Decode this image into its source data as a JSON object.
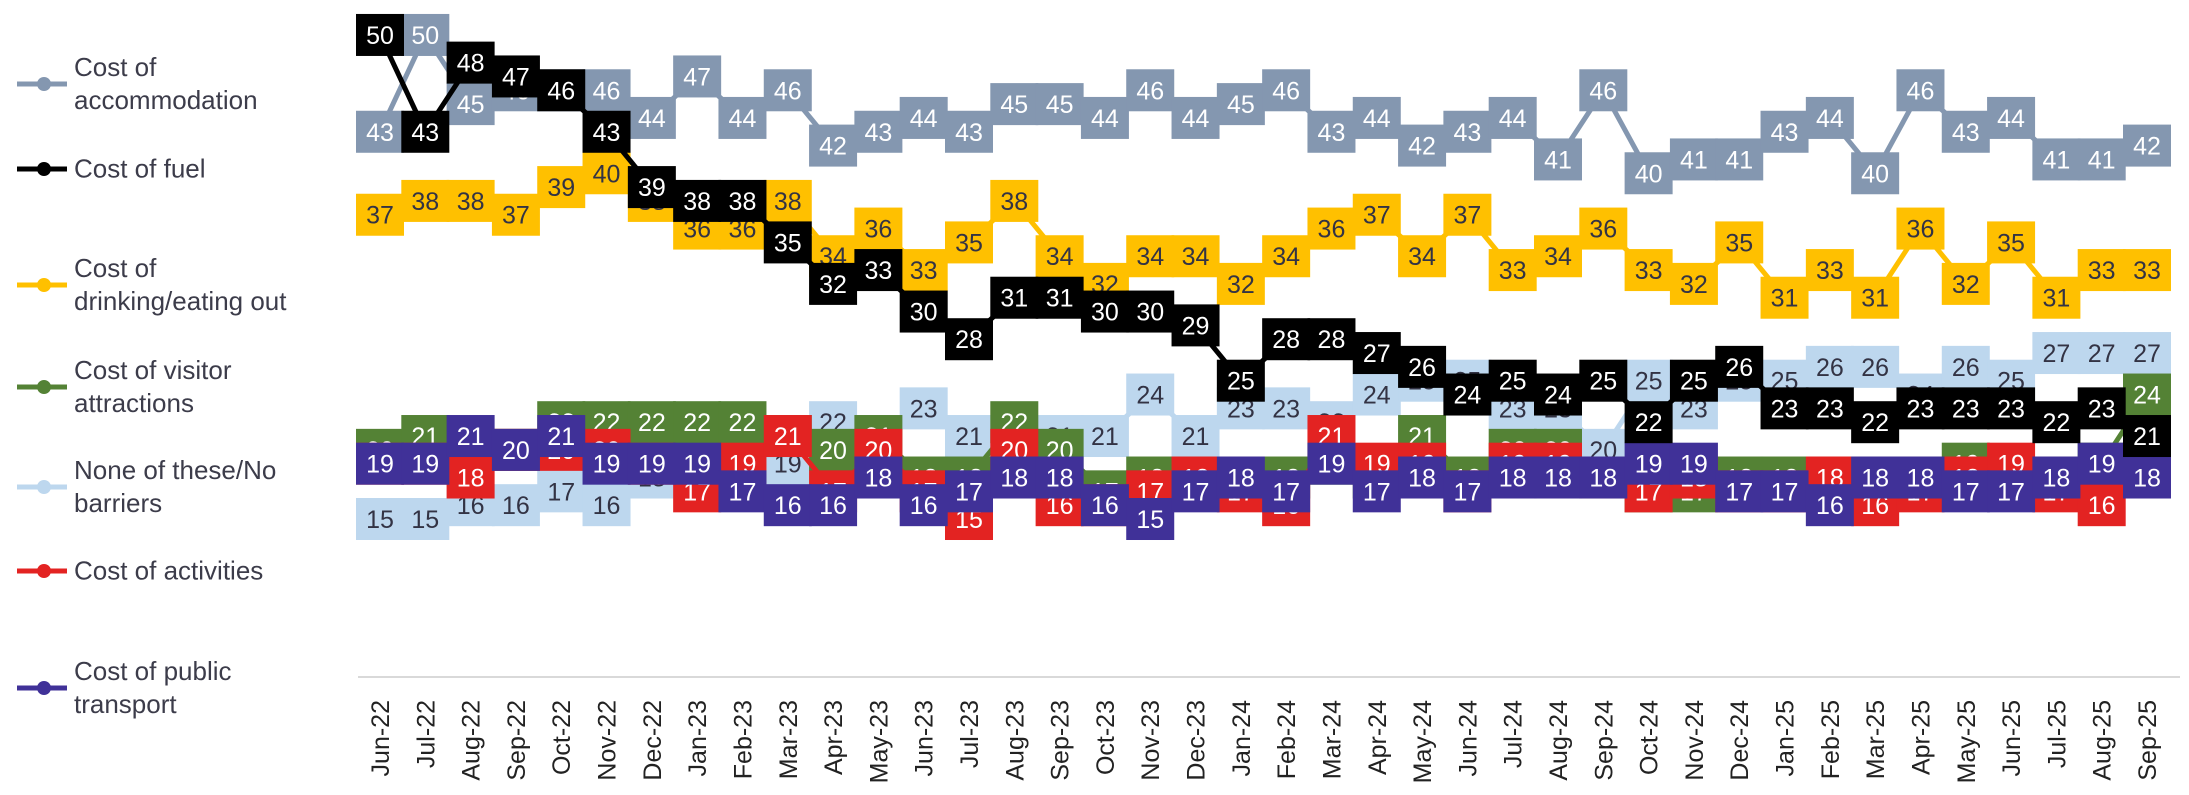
{
  "chart_data": {
    "type": "line",
    "categories": [
      "Jun-22",
      "Jul-22",
      "Aug-22",
      "Sep-22",
      "Oct-22",
      "Nov-22",
      "Dec-22",
      "Jan-23",
      "Feb-23",
      "Mar-23",
      "Apr-23",
      "May-23",
      "Jun-23",
      "Jul-23",
      "Aug-23",
      "Sep-23",
      "Oct-23",
      "Nov-23",
      "Dec-23",
      "Jan-24",
      "Feb-24",
      "Mar-24",
      "Apr-24",
      "May-24",
      "Jun-24",
      "Jul-24",
      "Aug-24",
      "Sep-24",
      "Oct-24",
      "Nov-24",
      "Dec-24",
      "Jan-25",
      "Feb-25",
      "Mar-25",
      "Apr-25",
      "May-25",
      "Jun-25",
      "Jul-25",
      "Aug-25",
      "Sep-25"
    ],
    "ylim": [
      5,
      52
    ],
    "series": [
      {
        "name": "Cost of accommodation",
        "color": "#8497b0",
        "values": [
          43,
          50,
          45,
          46,
          46,
          46,
          44,
          47,
          44,
          46,
          42,
          43,
          44,
          43,
          45,
          45,
          44,
          46,
          44,
          45,
          46,
          43,
          44,
          42,
          43,
          44,
          41,
          46,
          40,
          41,
          41,
          43,
          44,
          40,
          46,
          43,
          44,
          41,
          41,
          42
        ]
      },
      {
        "name": "Cost of fuel",
        "color": "#000000",
        "values": [
          50,
          43,
          48,
          47,
          46,
          43,
          39,
          38,
          38,
          35,
          32,
          33,
          30,
          28,
          31,
          31,
          30,
          30,
          29,
          25,
          28,
          28,
          27,
          26,
          24,
          25,
          24,
          25,
          22,
          25,
          26,
          23,
          23,
          22,
          23,
          23,
          23,
          22,
          23,
          21
        ]
      },
      {
        "name": "Cost of drinking/eating out",
        "color": "#ffc000",
        "values": [
          37,
          38,
          38,
          37,
          39,
          40,
          38,
          36,
          36,
          38,
          34,
          36,
          33,
          35,
          38,
          34,
          32,
          34,
          34,
          32,
          34,
          36,
          37,
          34,
          37,
          33,
          34,
          36,
          33,
          32,
          35,
          31,
          33,
          31,
          36,
          32,
          35,
          31,
          33,
          33
        ]
      },
      {
        "name": "Cost of visitor attractions",
        "color": "#548235",
        "values": [
          20,
          21,
          20,
          20,
          22,
          22,
          22,
          22,
          22,
          21,
          20,
          21,
          18,
          18,
          22,
          20,
          17,
          18,
          18,
          18,
          18,
          19,
          18,
          21,
          18,
          20,
          20,
          18,
          17,
          17,
          18,
          18,
          18,
          18,
          18,
          19,
          18,
          18,
          19,
          24
        ]
      },
      {
        "name": "None of these/No barriers",
        "color": "#bdd7ee",
        "values": [
          15,
          15,
          16,
          16,
          17,
          16,
          18,
          20,
          21,
          19,
          22,
          21,
          23,
          21,
          19,
          21,
          21,
          24,
          21,
          23,
          23,
          22,
          24,
          25,
          25,
          23,
          23,
          20,
          25,
          23,
          25,
          25,
          26,
          26,
          24,
          26,
          25,
          27,
          27,
          27
        ]
      },
      {
        "name": "Cost of activities",
        "color": "#e32322",
        "values": [
          19,
          19,
          18,
          20,
          20,
          20,
          19,
          17,
          19,
          21,
          17,
          20,
          17,
          15,
          20,
          16,
          16,
          17,
          18,
          17,
          16,
          21,
          19,
          19,
          17,
          19,
          19,
          18,
          17,
          18,
          17,
          17,
          18,
          16,
          17,
          18,
          19,
          17,
          16,
          19
        ]
      },
      {
        "name": "Cost of public transport",
        "color": "#403198",
        "values": [
          19,
          19,
          21,
          20,
          21,
          19,
          19,
          19,
          17,
          16,
          16,
          18,
          16,
          17,
          18,
          18,
          16,
          15,
          17,
          18,
          17,
          19,
          17,
          18,
          17,
          18,
          18,
          18,
          19,
          19,
          17,
          17,
          16,
          18,
          18,
          17,
          17,
          18,
          19,
          18
        ]
      }
    ]
  }
}
